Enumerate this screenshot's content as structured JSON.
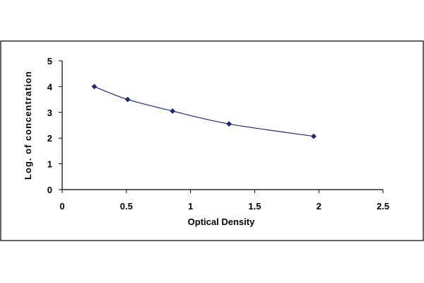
{
  "chart_data": {
    "type": "scatter",
    "title": "",
    "xlabel": "Optical Density",
    "ylabel": "Log. of concentration",
    "xlim": [
      0,
      2.5
    ],
    "ylim": [
      0,
      5
    ],
    "x_ticks": [
      "0",
      "0.5",
      "1",
      "1.5",
      "2",
      "2.5"
    ],
    "y_ticks": [
      "0",
      "1",
      "2",
      "3",
      "4",
      "5"
    ],
    "grid": false,
    "legend": "none",
    "series": [
      {
        "x": [
          0.25,
          0.51,
          0.86,
          1.3,
          1.96
        ],
        "y": [
          4.0,
          3.5,
          3.05,
          2.55,
          2.07
        ],
        "color": "#1f2a6b",
        "marker": "diamond",
        "trendline": true
      }
    ]
  }
}
